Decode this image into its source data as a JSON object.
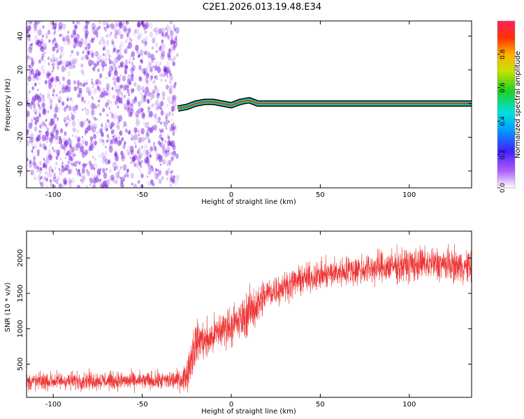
{
  "title": "C2E1.2026.013.19.48.E34",
  "colors": {
    "snr_line": "#ee3333",
    "track": "#ff2020",
    "noise": "#7a20e0",
    "frame": "#000000"
  },
  "chart_data": [
    {
      "type": "heatmap",
      "xlabel": "Height of straight line (km)",
      "ylabel": "Frequency (Hz)",
      "xlim": [
        -115,
        135
      ],
      "ylim": [
        -50,
        49
      ],
      "xticks": [
        -100,
        -50,
        0,
        50,
        100
      ],
      "xtick_labels": [
        "-100",
        "-50",
        "0",
        "50",
        "100"
      ],
      "yticks": [
        -40,
        -20,
        0,
        20,
        40
      ],
      "ytick_labels": [
        "-40",
        "-20",
        "0",
        "20",
        "40"
      ],
      "grid": false,
      "noise_region_x": [
        -115,
        -30
      ],
      "track": {
        "x": [
          -30,
          -25,
          -20,
          -15,
          -10,
          -5,
          0,
          5,
          10,
          15,
          135
        ],
        "y": [
          -3,
          -2,
          0,
          1,
          1,
          0,
          -1,
          1,
          2,
          0,
          0
        ]
      },
      "colorbar": {
        "label": "Normalized spectral amplitude",
        "range": [
          0,
          1
        ],
        "ticks": [
          0,
          0.2,
          0.4,
          0.6,
          0.8
        ],
        "tick_labels": [
          "0.0",
          "0.2",
          "0.4",
          "0.6",
          "0.8"
        ]
      }
    },
    {
      "type": "line",
      "xlabel": "Height of straight line (km)",
      "ylabel": "SNR (10 * v/v)",
      "xlim": [
        -115,
        135
      ],
      "ylim": [
        30,
        2380
      ],
      "xticks": [
        -100,
        -50,
        0,
        50,
        100
      ],
      "xtick_labels": [
        "-100",
        "-50",
        "0",
        "50",
        "100"
      ],
      "yticks": [
        500,
        1000,
        1500,
        2000
      ],
      "ytick_labels": [
        "500",
        "1000",
        "1500",
        "2000"
      ],
      "grid": false,
      "series": [
        {
          "x": [
            -115,
            -100,
            -80,
            -60,
            -40,
            -28,
            -25,
            -22,
            -20,
            -17,
            -14,
            -10,
            -5,
            0,
            5,
            10,
            15,
            20,
            30,
            40,
            50,
            60,
            70,
            80,
            90,
            100,
            110,
            120,
            130,
            135
          ],
          "values": [
            250,
            260,
            270,
            260,
            265,
            280,
            350,
            650,
            800,
            850,
            820,
            900,
            1000,
            1050,
            1100,
            1250,
            1350,
            1500,
            1600,
            1700,
            1750,
            1800,
            1830,
            1860,
            1880,
            1900,
            1920,
            1910,
            1880,
            1860
          ],
          "noise_amplitude": [
            140,
            140,
            140,
            140,
            140,
            160,
            250,
            350,
            350,
            300,
            300,
            300,
            300,
            300,
            320,
            350,
            320,
            260,
            220,
            220,
            220,
            230,
            240,
            250,
            260,
            260,
            260,
            260,
            250,
            250
          ]
        }
      ]
    }
  ]
}
